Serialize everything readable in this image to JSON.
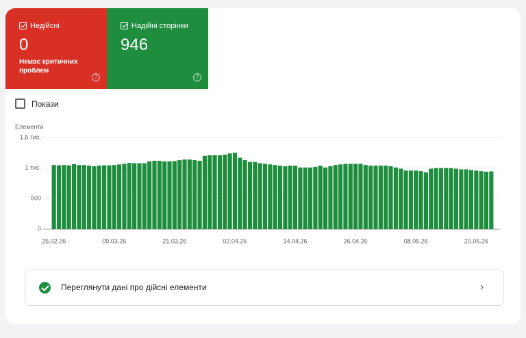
{
  "cards": [
    {
      "label": "Недійсні",
      "value": 0,
      "note": "Немає критичних проблем"
    },
    {
      "label": "Надійні сторінки",
      "value": 946
    }
  ],
  "checkbox_label": "Покази",
  "link_text": "Переглянути дані про дійсні елементи",
  "chart_data": {
    "type": "bar",
    "y_axis_label": "Елементи",
    "categories": [
      "25.02.26",
      null,
      null,
      null,
      null,
      null,
      null,
      null,
      null,
      null,
      null,
      null,
      "09.03.26",
      null,
      null,
      null,
      null,
      null,
      null,
      null,
      null,
      null,
      null,
      null,
      "21.03.26",
      null,
      null,
      null,
      null,
      null,
      null,
      null,
      null,
      null,
      null,
      null,
      "02.04.26",
      null,
      null,
      null,
      null,
      null,
      null,
      null,
      null,
      null,
      null,
      null,
      "14.04.26",
      null,
      null,
      null,
      null,
      null,
      null,
      null,
      null,
      null,
      null,
      null,
      "26.04.26",
      null,
      null,
      null,
      null,
      null,
      null,
      null,
      null,
      null,
      null,
      null,
      "08.05.26",
      null,
      null,
      null,
      null,
      null,
      null,
      null,
      null,
      null,
      null,
      null,
      "20.05.26",
      null,
      null,
      null
    ],
    "values": [
      1050,
      1045,
      1050,
      1045,
      1065,
      1050,
      1050,
      1040,
      1030,
      1040,
      1045,
      1045,
      1050,
      1060,
      1070,
      1085,
      1080,
      1080,
      1080,
      1110,
      1120,
      1120,
      1110,
      1110,
      1115,
      1130,
      1140,
      1140,
      1130,
      1120,
      1200,
      1210,
      1210,
      1210,
      1220,
      1240,
      1250,
      1170,
      1130,
      1100,
      1100,
      1080,
      1070,
      1060,
      1050,
      1040,
      1030,
      1040,
      1040,
      1010,
      1010,
      1010,
      1020,
      1040,
      1010,
      1030,
      1050,
      1060,
      1070,
      1070,
      1070,
      1070,
      1050,
      1040,
      1040,
      1040,
      1040,
      1030,
      1010,
      990,
      960,
      960,
      960,
      950,
      930,
      990,
      1000,
      1000,
      1000,
      1000,
      990,
      980,
      980,
      970,
      960,
      950,
      940,
      946
    ],
    "color": "#1e8e3e",
    "ylim": [
      0,
      1500
    ],
    "yticks": [
      0,
      500,
      {
        "value": 1000,
        "label": "1 тис."
      },
      {
        "value": 1500,
        "label": "1,5 тис."
      }
    ],
    "grid": true
  }
}
